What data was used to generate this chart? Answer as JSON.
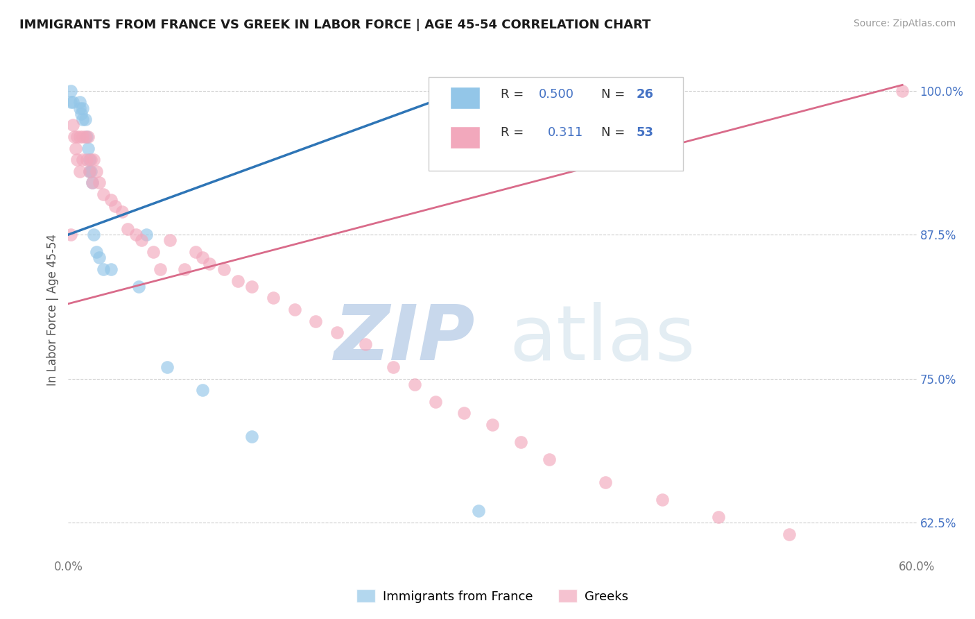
{
  "title": "IMMIGRANTS FROM FRANCE VS GREEK IN LABOR FORCE | AGE 45-54 CORRELATION CHART",
  "source": "Source: ZipAtlas.com",
  "ylabel": "In Labor Force | Age 45-54",
  "xlim": [
    0.0,
    0.6
  ],
  "ylim": [
    0.595,
    1.025
  ],
  "xticks": [
    0.0,
    0.6
  ],
  "xticklabels": [
    "0.0%",
    "60.0%"
  ],
  "ytick_right": [
    0.625,
    0.75,
    0.875,
    1.0
  ],
  "ytick_right_labels": [
    "62.5%",
    "75.0%",
    "87.5%",
    "100.0%"
  ],
  "legend_label1": "Immigrants from France",
  "legend_label2": "Greeks",
  "color_france": "#93C6E8",
  "color_greek": "#F2A8BC",
  "trendline_france_color": "#2E75B6",
  "trendline_greek_color": "#D96B8A",
  "background_color": "#ffffff",
  "france_x": [
    0.002,
    0.002,
    0.003,
    0.008,
    0.008,
    0.009,
    0.01,
    0.01,
    0.012,
    0.013,
    0.014,
    0.015,
    0.015,
    0.016,
    0.017,
    0.018,
    0.02,
    0.022,
    0.025,
    0.03,
    0.05,
    0.055,
    0.07,
    0.095,
    0.13,
    0.29
  ],
  "france_y": [
    1.0,
    0.99,
    0.99,
    0.99,
    0.985,
    0.98,
    0.985,
    0.975,
    0.975,
    0.96,
    0.95,
    0.94,
    0.93,
    0.93,
    0.92,
    0.875,
    0.86,
    0.855,
    0.845,
    0.845,
    0.83,
    0.875,
    0.76,
    0.74,
    0.7,
    0.635
  ],
  "greek_x": [
    0.002,
    0.003,
    0.004,
    0.005,
    0.006,
    0.006,
    0.008,
    0.008,
    0.01,
    0.01,
    0.012,
    0.013,
    0.014,
    0.015,
    0.016,
    0.017,
    0.018,
    0.02,
    0.022,
    0.025,
    0.03,
    0.033,
    0.038,
    0.042,
    0.048,
    0.052,
    0.06,
    0.065,
    0.072,
    0.082,
    0.09,
    0.095,
    0.1,
    0.11,
    0.12,
    0.13,
    0.145,
    0.16,
    0.175,
    0.19,
    0.21,
    0.23,
    0.245,
    0.26,
    0.28,
    0.3,
    0.32,
    0.34,
    0.38,
    0.42,
    0.46,
    0.51,
    0.59
  ],
  "greek_y": [
    0.875,
    0.97,
    0.96,
    0.95,
    0.96,
    0.94,
    0.96,
    0.93,
    0.96,
    0.94,
    0.96,
    0.94,
    0.96,
    0.93,
    0.94,
    0.92,
    0.94,
    0.93,
    0.92,
    0.91,
    0.905,
    0.9,
    0.895,
    0.88,
    0.875,
    0.87,
    0.86,
    0.845,
    0.87,
    0.845,
    0.86,
    0.855,
    0.85,
    0.845,
    0.835,
    0.83,
    0.82,
    0.81,
    0.8,
    0.79,
    0.78,
    0.76,
    0.745,
    0.73,
    0.72,
    0.71,
    0.695,
    0.68,
    0.66,
    0.645,
    0.63,
    0.615,
    1.0
  ],
  "france_trend_x": [
    0.0,
    0.29
  ],
  "france_trend_y": [
    0.875,
    1.005
  ],
  "greek_trend_x": [
    0.0,
    0.59
  ],
  "greek_trend_y": [
    0.815,
    1.005
  ]
}
